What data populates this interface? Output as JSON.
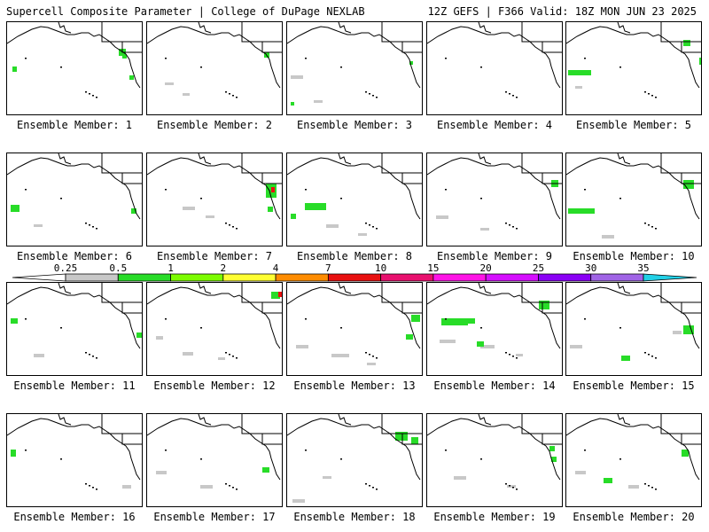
{
  "header": {
    "title_left": "Supercell Composite Parameter | College of DuPage NEXLAB",
    "title_right": "12Z GEFS | F366 Valid: 18Z MON JUN 23 2025"
  },
  "members": [
    {
      "label": "Ensemble Member: 1"
    },
    {
      "label": "Ensemble Member: 2"
    },
    {
      "label": "Ensemble Member: 3"
    },
    {
      "label": "Ensemble Member: 4"
    },
    {
      "label": "Ensemble Member: 5"
    },
    {
      "label": "Ensemble Member: 6"
    },
    {
      "label": "Ensemble Member: 7"
    },
    {
      "label": "Ensemble Member: 8"
    },
    {
      "label": "Ensemble Member: 9"
    },
    {
      "label": "Ensemble Member: 10"
    },
    {
      "label": "Ensemble Member: 11"
    },
    {
      "label": "Ensemble Member: 12"
    },
    {
      "label": "Ensemble Member: 13"
    },
    {
      "label": "Ensemble Member: 14"
    },
    {
      "label": "Ensemble Member: 15"
    },
    {
      "label": "Ensemble Member: 16"
    },
    {
      "label": "Ensemble Member: 17"
    },
    {
      "label": "Ensemble Member: 18"
    },
    {
      "label": "Ensemble Member: 19"
    },
    {
      "label": "Ensemble Member: 20"
    }
  ],
  "colorbar": {
    "ticks": [
      "0.25",
      "0.5",
      "1",
      "2",
      "4",
      "7",
      "10",
      "15",
      "20",
      "25",
      "30",
      "35"
    ],
    "colors": [
      "#ffffff",
      "#c8c8c8",
      "#28dc28",
      "#7cfc00",
      "#ffff32",
      "#ff8c00",
      "#e81010",
      "#e8106e",
      "#ff14e6",
      "#d50fff",
      "#8a00f5",
      "#a064e6",
      "#22d0e6"
    ]
  }
}
